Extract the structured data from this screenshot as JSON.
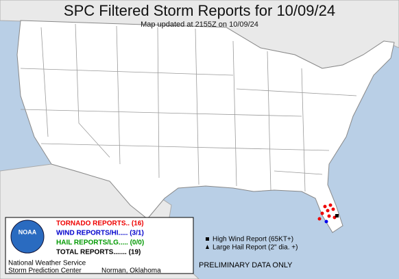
{
  "title": "SPC Filtered Storm Reports for 10/09/24",
  "subtitle": "Map updated at 2155Z on 10/09/24",
  "legend": {
    "tornado": "TORNADO REPORTS.. (16)",
    "wind": "WIND REPORTS/HI..... (3/1)",
    "hail": "HAIL REPORTS/LG..... (0/0)",
    "total": "TOTAL REPORTS....... (19)"
  },
  "symbols": [
    "High Wind Report (65KT+)",
    "Large Hail Report (2\" dia. +)"
  ],
  "logo": "NOAA",
  "footer": {
    "org": "National Weather Service",
    "center": "Storm Prediction Center",
    "location": "Norman, Oklahoma",
    "note": "PRELIMINARY DATA ONLY"
  }
}
